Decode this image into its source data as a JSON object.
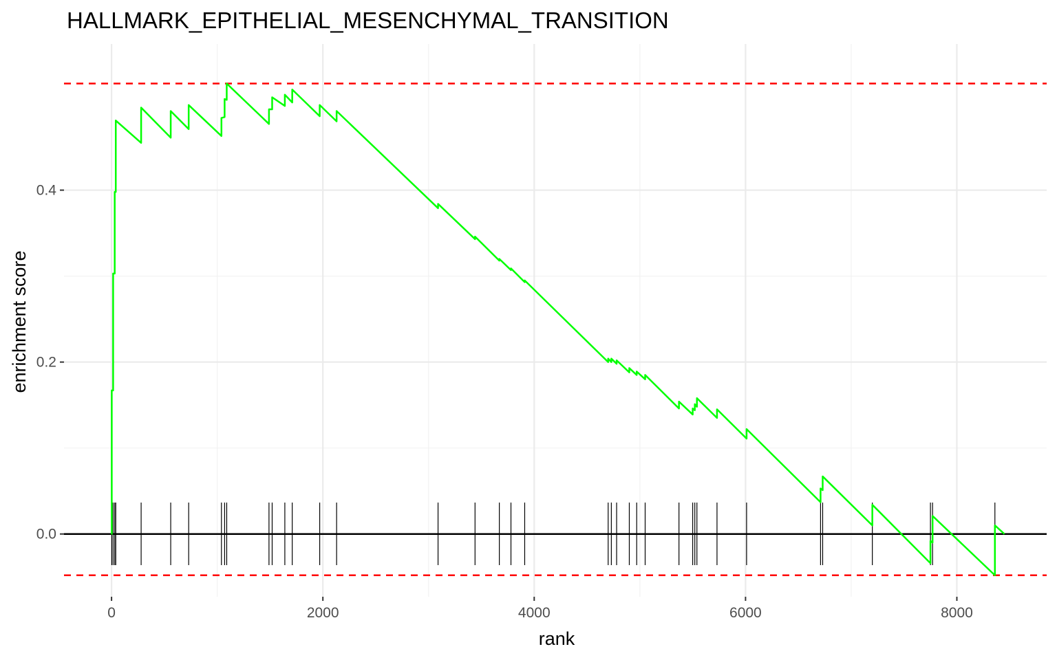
{
  "chart_data": {
    "type": "line",
    "title": "HALLMARK_EPITHELIAL_MESENCHYMAL_TRANSITION",
    "xlabel": "rank",
    "ylabel": "enrichment score",
    "xlim": [
      -450,
      8850
    ],
    "ylim": [
      -0.073,
      0.57
    ],
    "x_ticks": [
      0,
      2000,
      4000,
      6000,
      8000
    ],
    "y_ticks": [
      0.0,
      0.2,
      0.4
    ],
    "grid": true,
    "series": [
      {
        "color": "#00ff00",
        "hit_ranks": [
          2,
          15,
          30,
          40,
          280,
          560,
          730,
          1040,
          1070,
          1090,
          1490,
          1520,
          1640,
          1710,
          1970,
          2130,
          3090,
          3440,
          3670,
          3780,
          3910,
          4700,
          4730,
          4780,
          4900,
          4970,
          5050,
          5370,
          5500,
          5520,
          5540,
          5730,
          6010,
          6710,
          6730,
          7200,
          7750,
          7770,
          8360
        ],
        "x": [
          0,
          2,
          2,
          15,
          15,
          30,
          30,
          40,
          40,
          280,
          280,
          560,
          560,
          730,
          730,
          1040,
          1040,
          1070,
          1070,
          1090,
          1090,
          1490,
          1490,
          1520,
          1520,
          1640,
          1640,
          1710,
          1710,
          1970,
          1970,
          2130,
          2130,
          3090,
          3090,
          3440,
          3440,
          3670,
          3670,
          3780,
          3780,
          3910,
          3910,
          4700,
          4700,
          4730,
          4730,
          4780,
          4780,
          4900,
          4900,
          4970,
          4970,
          5050,
          5050,
          5370,
          5370,
          5500,
          5500,
          5520,
          5520,
          5540,
          5540,
          5730,
          5730,
          6010,
          6010,
          6710,
          6710,
          6730,
          6730,
          7200,
          7200,
          7750,
          7750,
          7770,
          7770,
          8360,
          8360,
          8450
        ],
        "y": [
          0.0,
          0.0,
          0.167,
          0.167,
          0.303,
          0.303,
          0.398,
          0.398,
          0.481,
          0.455,
          0.496,
          0.461,
          0.492,
          0.471,
          0.499,
          0.463,
          0.484,
          0.485,
          0.506,
          0.505,
          0.524,
          0.477,
          0.494,
          0.494,
          0.508,
          0.498,
          0.511,
          0.502,
          0.517,
          0.486,
          0.499,
          0.48,
          0.492,
          0.379,
          0.384,
          0.343,
          0.346,
          0.318,
          0.32,
          0.307,
          0.309,
          0.293,
          0.295,
          0.2,
          0.204,
          0.2,
          0.204,
          0.198,
          0.202,
          0.188,
          0.193,
          0.185,
          0.189,
          0.18,
          0.185,
          0.146,
          0.154,
          0.139,
          0.146,
          0.144,
          0.151,
          0.148,
          0.158,
          0.135,
          0.145,
          0.111,
          0.122,
          0.037,
          0.053,
          0.051,
          0.067,
          0.01,
          0.034,
          -0.034,
          -0.008,
          -0.01,
          0.021,
          -0.048,
          0.01,
          0.0
        ]
      }
    ],
    "reference_lines": {
      "zero": 0.0,
      "max_es": 0.524,
      "min_es": -0.048,
      "zero_color": "#000000",
      "dashed_color": "#ff0000"
    }
  }
}
